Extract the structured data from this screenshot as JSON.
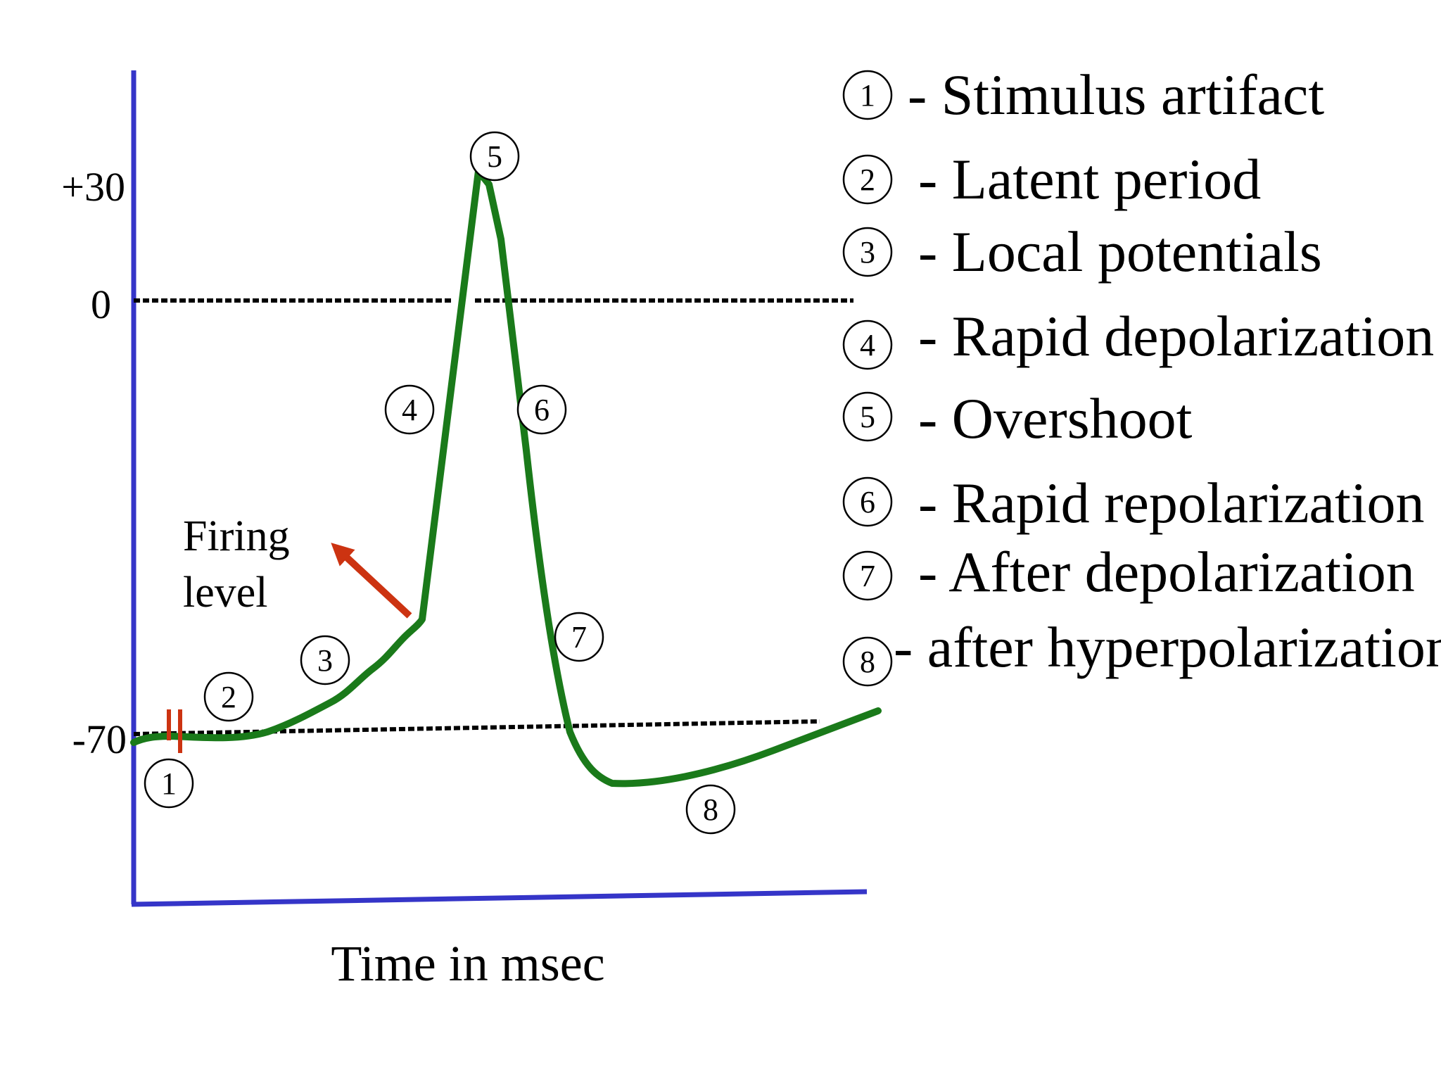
{
  "y_axis": {
    "ticks": [
      {
        "value": 30,
        "label": "+30"
      },
      {
        "value": 0,
        "label": "0"
      },
      {
        "value": -70,
        "label": "-70"
      }
    ]
  },
  "x_axis": {
    "label": "Time in msec"
  },
  "firing_level": {
    "line1": "Firing",
    "line2": "level"
  },
  "markers": [
    "1",
    "2",
    "3",
    "4",
    "5",
    "6",
    "7",
    "8"
  ],
  "legend": [
    {
      "num": "1",
      "text": "- Stimulus artifact"
    },
    {
      "num": "2",
      "text": "- Latent period"
    },
    {
      "num": "3",
      "text": "- Local potentials"
    },
    {
      "num": "4",
      "text": "- Rapid depolarization"
    },
    {
      "num": "5",
      "text": "- Overshoot"
    },
    {
      "num": "6",
      "text": "- Rapid repolarization"
    },
    {
      "num": "7",
      "text": "- After depolarization"
    },
    {
      "num": "8",
      "text": "- after hyperpolarization"
    }
  ],
  "colors": {
    "axis": "#3535c8",
    "trace": "#1a7a1a",
    "artifact": "#cc3311",
    "arrow": "#cc3311",
    "reference_line": "#000000"
  }
}
